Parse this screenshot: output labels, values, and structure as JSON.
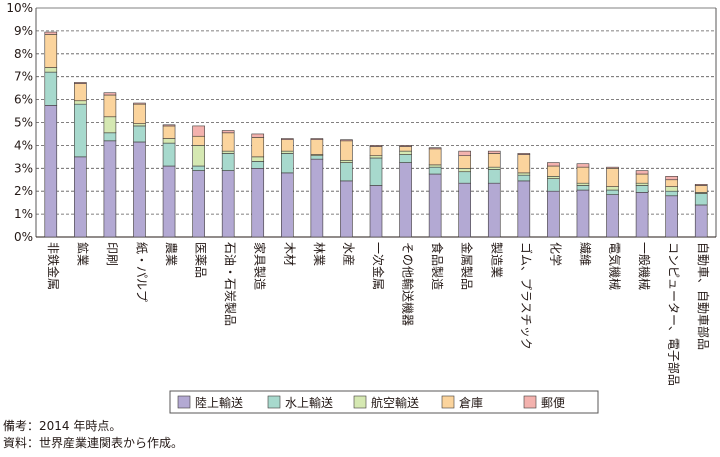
{
  "chart_data": {
    "type": "bar",
    "stacked": true,
    "categories": [
      "非鉄金属",
      "鉱業",
      "印刷",
      "紙・パルプ",
      "農業",
      "医薬品",
      "石油・石炭製品",
      "家具製造",
      "木材",
      "林業",
      "水産",
      "一次金属",
      "その他輸送機器",
      "食品製造",
      "金属製品",
      "製造業",
      "ゴム、プラスチック",
      "化学",
      "繊維",
      "電気機械",
      "一般機械",
      "コンピューター、電子部品",
      "自動車、自動車部品"
    ],
    "series": [
      {
        "name": "陸上輸送",
        "color": "#b3a9d3",
        "values": [
          5.75,
          3.5,
          4.2,
          4.15,
          3.1,
          2.9,
          2.9,
          3.0,
          2.8,
          3.4,
          2.45,
          2.25,
          3.25,
          2.75,
          2.35,
          2.35,
          2.45,
          2.0,
          2.05,
          1.85,
          1.95,
          1.8,
          1.4
        ]
      },
      {
        "name": "水上輸送",
        "color": "#a7d9cd",
        "values": [
          1.45,
          2.3,
          0.35,
          0.7,
          1.0,
          0.2,
          0.75,
          0.3,
          0.85,
          0.15,
          0.8,
          1.2,
          0.35,
          0.3,
          0.5,
          0.6,
          0.25,
          0.55,
          0.2,
          0.2,
          0.3,
          0.2,
          0.5
        ]
      },
      {
        "name": "航空輸送",
        "color": "#d5e8b2",
        "values": [
          0.2,
          0.15,
          0.7,
          0.1,
          0.2,
          0.9,
          0.1,
          0.2,
          0.1,
          0.05,
          0.1,
          0.1,
          0.15,
          0.1,
          0.15,
          0.1,
          0.1,
          0.1,
          0.1,
          0.15,
          0.1,
          0.2,
          0.05
        ]
      },
      {
        "name": "倉庫",
        "color": "#fbd49d",
        "values": [
          1.45,
          0.75,
          0.95,
          0.85,
          0.55,
          0.4,
          0.8,
          0.85,
          0.5,
          0.65,
          0.85,
          0.4,
          0.2,
          0.7,
          0.55,
          0.6,
          0.8,
          0.45,
          0.7,
          0.8,
          0.4,
          0.3,
          0.3
        ]
      },
      {
        "name": "郵便",
        "color": "#f3b2ae",
        "values": [
          0.1,
          0.05,
          0.1,
          0.05,
          0.05,
          0.45,
          0.1,
          0.15,
          0.05,
          0.05,
          0.05,
          0.05,
          0.05,
          0.05,
          0.2,
          0.1,
          0.05,
          0.15,
          0.15,
          0.05,
          0.15,
          0.15,
          0.05
        ]
      }
    ],
    "ylim": [
      0,
      10
    ],
    "yticks": [
      "0%",
      "1%",
      "2%",
      "3%",
      "4%",
      "5%",
      "6%",
      "7%",
      "8%",
      "9%",
      "10%"
    ],
    "grid": true,
    "legend": "bottom"
  },
  "notes": {
    "line1": "備考：2014 年時点。",
    "line2": "資料：世界産業連関表から作成。"
  }
}
